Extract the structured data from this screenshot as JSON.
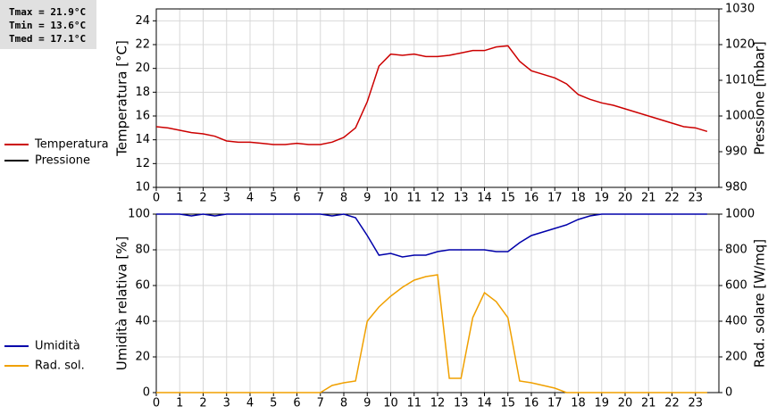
{
  "stats": [
    "Tmax = 21.9°C",
    "Tmin = 13.6°C",
    "Tmed = 17.1°C"
  ],
  "chart_data": [
    {
      "type": "line",
      "legend": "left",
      "grid": true,
      "x": [
        0,
        0.5,
        1,
        1.5,
        2,
        2.5,
        3,
        3.5,
        4,
        4.5,
        5,
        5.5,
        6,
        6.5,
        7,
        7.5,
        8,
        8.5,
        9,
        9.5,
        10,
        10.5,
        11,
        11.5,
        12,
        12.5,
        13,
        13.5,
        14,
        14.5,
        15,
        15.5,
        16,
        16.5,
        17,
        17.5,
        18,
        18.5,
        19,
        19.5,
        20,
        20.5,
        21,
        21.5,
        22,
        22.5,
        23,
        23.5
      ],
      "xlim": [
        0,
        24
      ],
      "xticks": [
        0,
        1,
        2,
        3,
        4,
        5,
        6,
        7,
        8,
        9,
        10,
        11,
        12,
        13,
        14,
        15,
        16,
        17,
        18,
        19,
        20,
        21,
        22,
        23
      ],
      "ylim": [
        10,
        25
      ],
      "yticks": [
        10,
        12,
        14,
        16,
        18,
        20,
        22,
        24
      ],
      "y2lim": [
        980,
        1030
      ],
      "y2ticks": [
        980,
        990,
        1000,
        1010,
        1020,
        1030
      ],
      "ylabel": "Temperatura [°C]",
      "y2label": "Pressione [mbar]",
      "series": [
        {
          "name": "Temperatura",
          "color": "#cc0000",
          "values": [
            15.1,
            15.0,
            14.8,
            14.6,
            14.5,
            14.3,
            13.9,
            13.8,
            13.8,
            13.7,
            13.6,
            13.6,
            13.7,
            13.6,
            13.6,
            13.8,
            14.2,
            15.0,
            17.2,
            20.2,
            21.2,
            21.1,
            21.2,
            21.0,
            21.0,
            21.1,
            21.3,
            21.5,
            21.5,
            21.8,
            21.9,
            20.6,
            19.8,
            19.5,
            19.2,
            18.7,
            17.8,
            17.4,
            17.1,
            16.9,
            16.6,
            16.3,
            16.0,
            15.7,
            15.4,
            15.1,
            15.0,
            14.7
          ]
        },
        {
          "name": "Pressione",
          "color": "#000000",
          "axis": "y2",
          "values": [
            null,
            null,
            null,
            null,
            null,
            null,
            null,
            null,
            null,
            null,
            null,
            null,
            null,
            null,
            null,
            null,
            null,
            null,
            null,
            null,
            null,
            null,
            null,
            null,
            null,
            null,
            null,
            null,
            null,
            null,
            null,
            null,
            null,
            null,
            null,
            null,
            null,
            null,
            null,
            null,
            null,
            null,
            null,
            null,
            null,
            null,
            null,
            null
          ]
        }
      ]
    },
    {
      "type": "line",
      "legend": "left",
      "grid": true,
      "x": [
        0,
        0.5,
        1,
        1.5,
        2,
        2.5,
        3,
        3.5,
        4,
        4.5,
        5,
        5.5,
        6,
        6.5,
        7,
        7.5,
        8,
        8.5,
        9,
        9.5,
        10,
        10.5,
        11,
        11.5,
        12,
        12.5,
        13,
        13.5,
        14,
        14.5,
        15,
        15.5,
        16,
        16.5,
        17,
        17.5,
        18,
        18.5,
        19,
        19.5,
        20,
        20.5,
        21,
        21.5,
        22,
        22.5,
        23,
        23.5
      ],
      "xlim": [
        0,
        24
      ],
      "xticks": [
        0,
        1,
        2,
        3,
        4,
        5,
        6,
        7,
        8,
        9,
        10,
        11,
        12,
        13,
        14,
        15,
        16,
        17,
        18,
        19,
        20,
        21,
        22,
        23
      ],
      "ylim": [
        0,
        100
      ],
      "yticks": [
        0,
        20,
        40,
        60,
        80,
        100
      ],
      "y2lim": [
        0,
        1000
      ],
      "y2ticks": [
        0,
        200,
        400,
        600,
        800,
        1000
      ],
      "ylabel": "Umidità relativa [%]",
      "y2label": "Rad. solare [W/mq]",
      "series": [
        {
          "name": "Umidità",
          "color": "#0000aa",
          "values": [
            100,
            100,
            100,
            99,
            100,
            99,
            100,
            100,
            100,
            100,
            100,
            100,
            100,
            100,
            100,
            99,
            100,
            98,
            88,
            77,
            78,
            76,
            77,
            77,
            79,
            80,
            80,
            80,
            80,
            79,
            79,
            84,
            88,
            90,
            92,
            94,
            97,
            99,
            100,
            100,
            100,
            100,
            100,
            100,
            100,
            100,
            100,
            100
          ]
        },
        {
          "name": "Rad. sol.",
          "color": "#f0a000",
          "axis": "y2",
          "values": [
            0,
            0,
            0,
            0,
            0,
            0,
            0,
            0,
            0,
            0,
            0,
            0,
            0,
            0,
            0,
            40,
            55,
            65,
            400,
            480,
            540,
            590,
            630,
            650,
            660,
            80,
            80,
            420,
            560,
            510,
            420,
            65,
            55,
            40,
            25,
            0,
            0,
            0,
            0,
            0,
            0,
            0,
            0,
            0,
            0,
            0,
            0,
            0
          ]
        }
      ]
    }
  ]
}
